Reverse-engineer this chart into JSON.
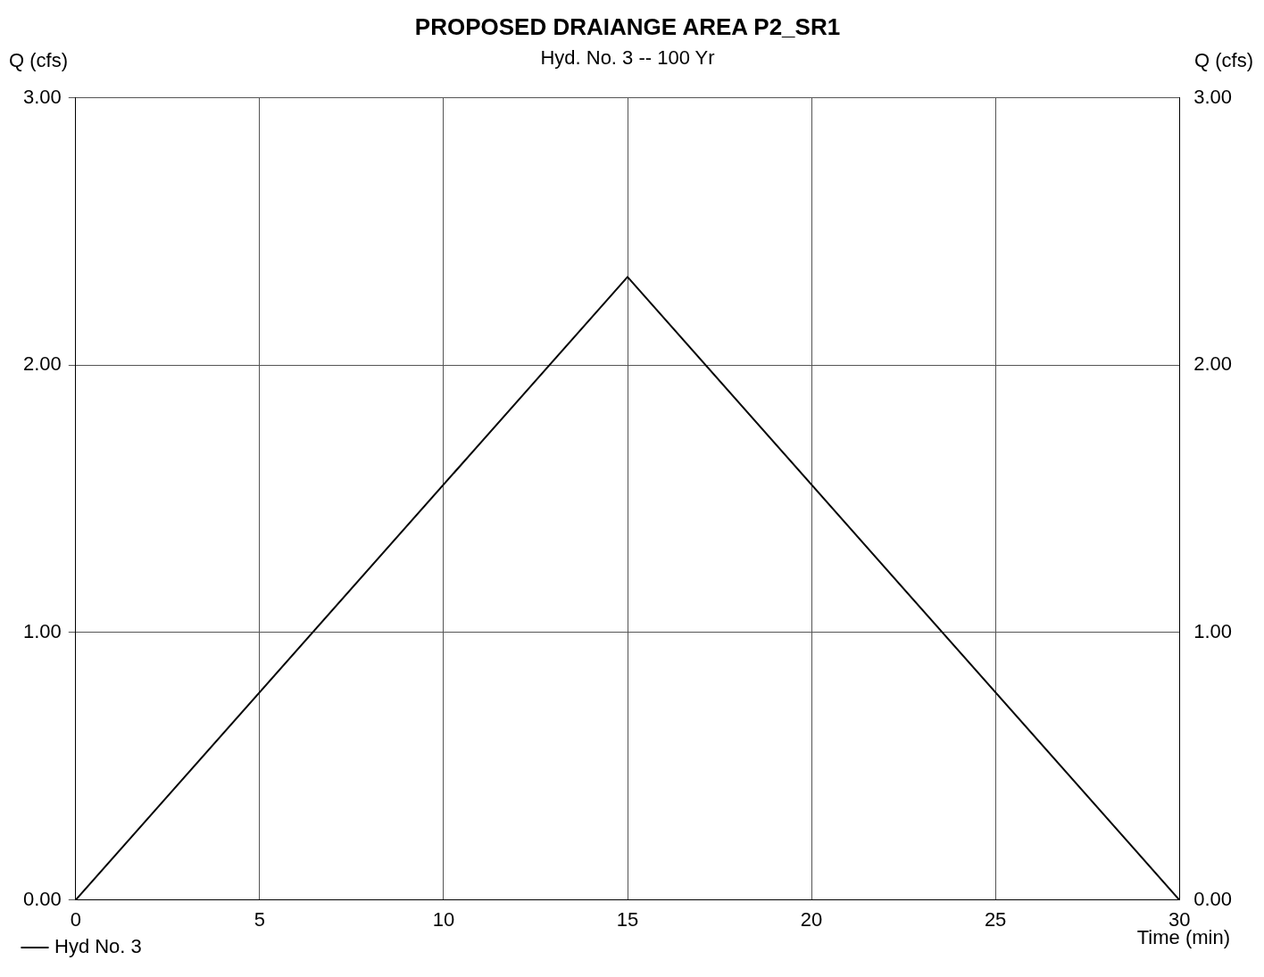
{
  "chart_data": {
    "type": "line",
    "title": "PROPOSED DRAIANGE AREA P2_SR1",
    "subtitle": "Hyd. No. 3 -- 100 Yr",
    "xlabel": "Time (min)",
    "ylabel": "Q (cfs)",
    "y2label": "Q (cfs)",
    "x": [
      0,
      15,
      30
    ],
    "series": [
      {
        "name": "Hyd No. 3",
        "color": "#000000",
        "values": [
          0,
          2.33,
          0
        ]
      }
    ],
    "xlim": [
      0,
      30
    ],
    "xticks": [
      0,
      5,
      10,
      15,
      20,
      25,
      30
    ],
    "ylim": [
      0,
      3
    ],
    "yticks": [
      {
        "value": 0,
        "label": "0.00"
      },
      {
        "value": 1,
        "label": "1.00"
      },
      {
        "value": 2,
        "label": "2.00"
      },
      {
        "value": 3,
        "label": "3.00"
      }
    ],
    "y2lim": [
      0,
      3
    ],
    "y2ticks": [
      {
        "value": 0,
        "label": "0.00"
      },
      {
        "value": 1,
        "label": "1.00"
      },
      {
        "value": 2,
        "label": "2.00"
      },
      {
        "value": 3,
        "label": "3.00"
      }
    ],
    "grid": true,
    "legend": "bottom left",
    "marker": "none",
    "line_style": "solid"
  }
}
